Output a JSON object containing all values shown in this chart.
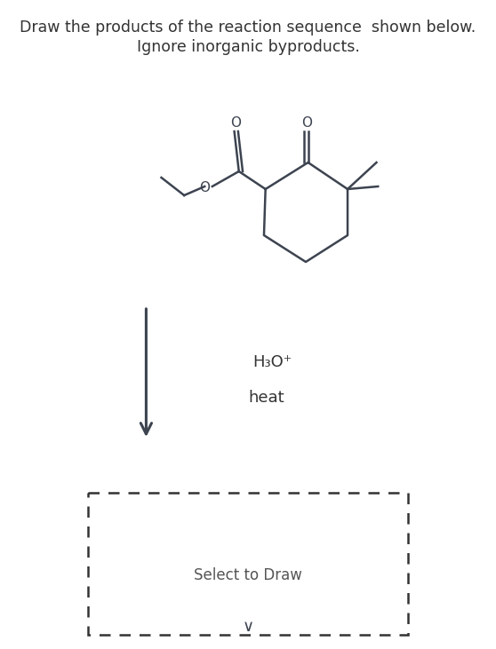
{
  "title_line1": "Draw the products of the reaction sequence  shown below.",
  "title_line2": "Ignore inorganic byproducts.",
  "title_fontsize": 12.5,
  "title_color": "#333333",
  "reagent1": "H₃O⁺",
  "reagent2": "heat",
  "reagent_fontsize": 13,
  "reagent_color": "#333333",
  "select_text": "Select to Draw",
  "select_fontsize": 12,
  "select_color": "#555555",
  "arrow_color": "#3d4450",
  "line_color": "#3d4450",
  "background": "#ffffff",
  "lw": 1.8
}
